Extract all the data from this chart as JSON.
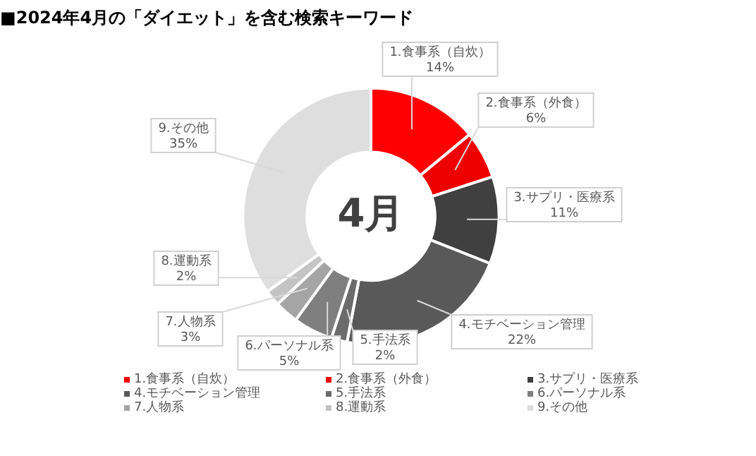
{
  "chart_data": {
    "type": "donut",
    "title": "■2024年4月の「ダイエット」を含む検索キーワード",
    "categories": [
      "1.食事系（自炊）",
      "2.食事系（外食）",
      "3.サプリ・医療系",
      "4.モチベーション管理",
      "5.手法系",
      "6.パーソナル系",
      "7.人物系",
      "8.運動系",
      "9.その他"
    ],
    "values": [
      14,
      6,
      11,
      22,
      2,
      5,
      3,
      2,
      35
    ],
    "value_labels": [
      "14%",
      "6%",
      "11%",
      "22%",
      "2%",
      "5%",
      "3%",
      "2%",
      "35%"
    ],
    "colors": [
      "#ff0000",
      "#ee0000",
      "#404040",
      "#595959",
      "#6b6b6b",
      "#7f7f7f",
      "#a5a5a5",
      "#c4c4c4",
      "#dedede"
    ],
    "annotations": [
      "4月"
    ],
    "legend": "bottom"
  }
}
